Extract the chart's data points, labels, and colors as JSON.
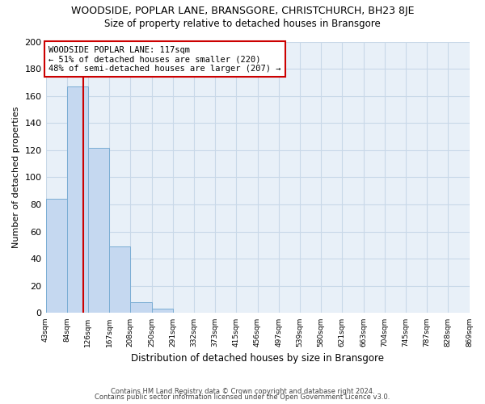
{
  "title": "WOODSIDE, POPLAR LANE, BRANSGORE, CHRISTCHURCH, BH23 8JE",
  "subtitle": "Size of property relative to detached houses in Bransgore",
  "xlabel": "Distribution of detached houses by size in Bransgore",
  "ylabel": "Number of detached properties",
  "bar_values": [
    84,
    167,
    122,
    49,
    8,
    3,
    0,
    0,
    0,
    0,
    0,
    0,
    0,
    0,
    0,
    0,
    0,
    0,
    0,
    0
  ],
  "bin_labels": [
    "43sqm",
    "84sqm",
    "126sqm",
    "167sqm",
    "208sqm",
    "250sqm",
    "291sqm",
    "332sqm",
    "373sqm",
    "415sqm",
    "456sqm",
    "497sqm",
    "539sqm",
    "580sqm",
    "621sqm",
    "663sqm",
    "704sqm",
    "745sqm",
    "787sqm",
    "828sqm",
    "869sqm"
  ],
  "bar_color": "#c5d8f0",
  "bar_edge_color": "#7aadd4",
  "grid_color": "#c8d8e8",
  "property_line_color": "#cc0000",
  "annotation_box_text": "WOODSIDE POPLAR LANE: 117sqm\n← 51% of detached houses are smaller (220)\n48% of semi-detached houses are larger (207) →",
  "footnote1": "Contains HM Land Registry data © Crown copyright and database right 2024.",
  "footnote2": "Contains public sector information licensed under the Open Government Licence v3.0.",
  "ylim": [
    0,
    200
  ],
  "yticks": [
    0,
    20,
    40,
    60,
    80,
    100,
    120,
    140,
    160,
    180,
    200
  ],
  "fig_bg_color": "#ffffff",
  "title_fontsize": 9,
  "subtitle_fontsize": 8.5
}
